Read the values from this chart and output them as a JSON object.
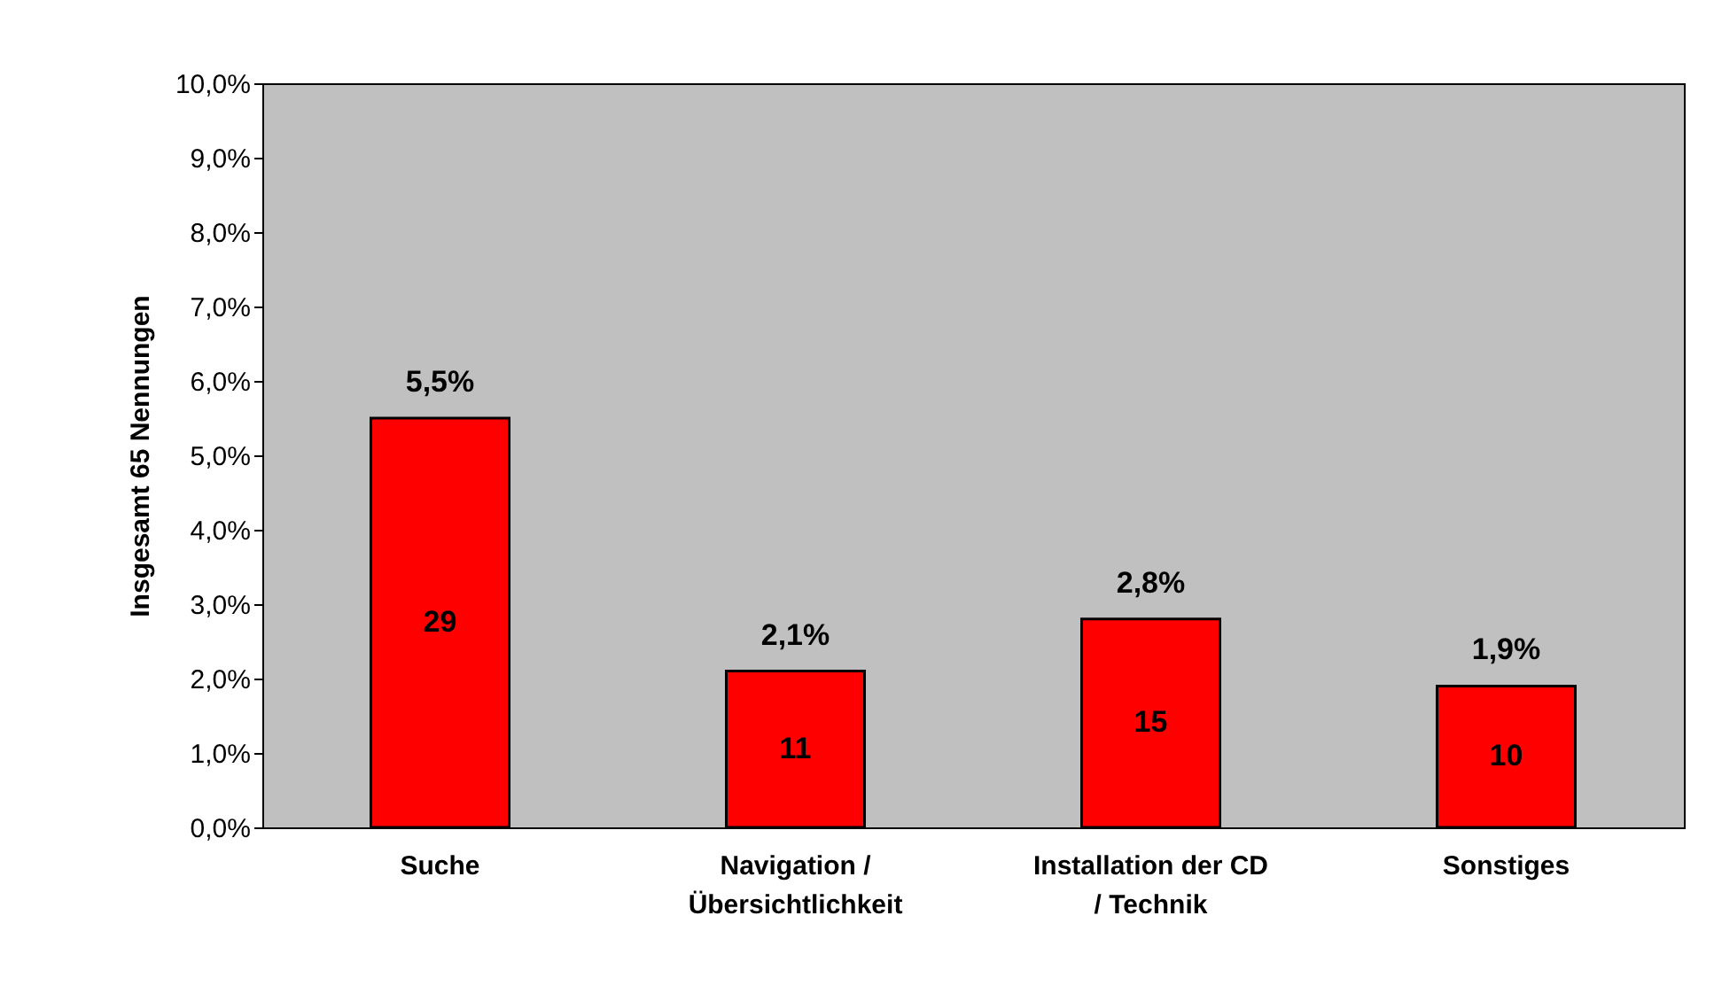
{
  "chart_data": {
    "type": "bar",
    "ylabel": "Insgesamt 65 Nennungen",
    "categories": [
      "Suche",
      "Navigation /\nÜbersichtlichkeit",
      "Installation der CD\n/ Technik",
      "Sonstiges"
    ],
    "values": [
      5.5,
      2.1,
      2.8,
      1.9
    ],
    "color": "#ff0000",
    "value_labels": [
      "5,5%",
      "2,1%",
      "2,8%",
      "1,9%"
    ],
    "ylim": [
      0,
      10
    ],
    "yticks": [
      {
        "value": 0,
        "label": "0,0%"
      },
      {
        "value": 1,
        "label": "1,0%"
      },
      {
        "value": 2,
        "label": "2,0%"
      },
      {
        "value": 3,
        "label": "3,0%"
      },
      {
        "value": 4,
        "label": "4,0%"
      },
      {
        "value": 5,
        "label": "5,0%"
      },
      {
        "value": 6,
        "label": "6,0%"
      },
      {
        "value": 7,
        "label": "7,0%"
      },
      {
        "value": 8,
        "label": "8,0%"
      },
      {
        "value": 9,
        "label": "9,0%"
      },
      {
        "value": 10,
        "label": "10,0%"
      }
    ],
    "grid": false,
    "annotations": [
      "29",
      "11",
      "15",
      "10"
    ]
  }
}
